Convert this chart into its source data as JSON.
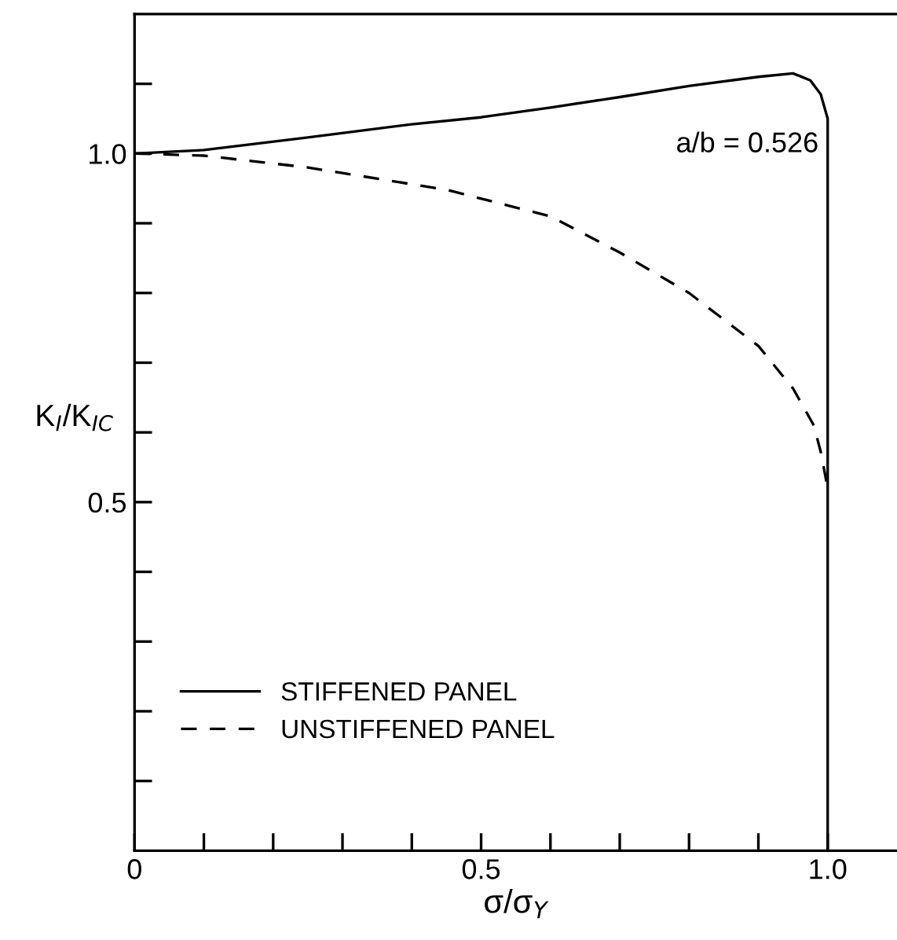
{
  "chart_data": {
    "type": "line",
    "xlabel": "σ/σ$_{Y}$",
    "ylabel": "K$_{I}$/K$_{IC}$",
    "annotations": [
      "a/b = 0.526"
    ],
    "series": [
      {
        "name": "STIFFENED PANEL",
        "color": "#000000",
        "line_style": "solid",
        "x": [
          0,
          0.1,
          0.25,
          0.4,
          0.5,
          0.6,
          0.7,
          0.8,
          0.9,
          0.95,
          0.975,
          0.99,
          1.0,
          1.0
        ],
        "values": [
          1.0,
          1.005,
          1.023,
          1.042,
          1.052,
          1.066,
          1.081,
          1.097,
          1.11,
          1.115,
          1.105,
          1.085,
          1.05,
          0
        ]
      },
      {
        "name": "UNSTIFFENED PANEL",
        "color": "#000000",
        "line_style": "dashed",
        "x": [
          0,
          0.1,
          0.25,
          0.45,
          0.6,
          0.7,
          0.8,
          0.9,
          0.95,
          0.98,
          0.99,
          1.0
        ],
        "values": [
          1.0,
          0.997,
          0.98,
          0.948,
          0.91,
          0.858,
          0.8,
          0.724,
          0.663,
          0.61,
          0.572,
          0.52
        ]
      }
    ],
    "xlim": [
      0,
      1.1
    ],
    "ylim": [
      0,
      1.2
    ],
    "xticks": [
      0,
      {
        "value": 0.1,
        "label": null
      },
      {
        "value": 0.2,
        "label": null
      },
      {
        "value": 0.3,
        "label": null
      },
      {
        "value": 0.4,
        "label": null
      },
      0.5,
      {
        "value": 0.6,
        "label": null
      },
      {
        "value": 0.7,
        "label": null
      },
      {
        "value": 0.8,
        "label": null
      },
      {
        "value": 0.9,
        "label": null
      },
      {
        "value": 1.0,
        "label": "1.0"
      }
    ],
    "yticks": [
      {
        "value": 0.1,
        "label": null
      },
      {
        "value": 0.2,
        "label": null
      },
      {
        "value": 0.3,
        "label": null
      },
      {
        "value": 0.4,
        "label": null
      },
      0.5,
      {
        "value": 0.6,
        "label": null
      },
      {
        "value": 0.7,
        "label": null
      },
      {
        "value": 0.8,
        "label": null
      },
      {
        "value": 0.9,
        "label": null
      },
      {
        "value": 1.0,
        "label": "1.0"
      },
      {
        "value": 1.1,
        "label": null
      }
    ],
    "grid": false,
    "legend": "bottom left",
    "marker": "none"
  }
}
